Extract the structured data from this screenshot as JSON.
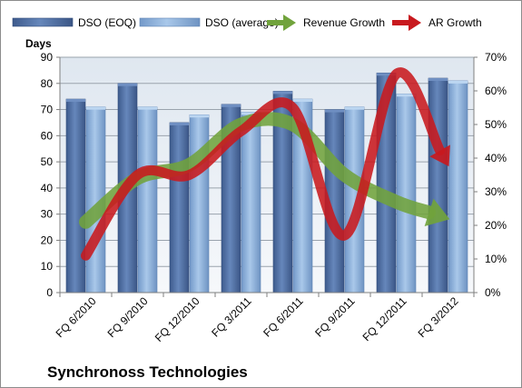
{
  "chart_data": {
    "type": "bar",
    "title": "Synchronoss Technologies",
    "ylabel": "Days",
    "ylim": [
      0,
      90
    ],
    "y2lim": [
      0,
      0.7
    ],
    "yticks": [
      "0",
      "10",
      "20",
      "30",
      "40",
      "50",
      "60",
      "70",
      "80",
      "90"
    ],
    "y2ticks": [
      "0%",
      "10%",
      "20%",
      "30%",
      "40%",
      "50%",
      "60%",
      "70%"
    ],
    "categories": [
      "FQ 6/2010",
      "FQ 9/2010",
      "FQ 12/2010",
      "FQ 3/2011",
      "FQ 6/2011",
      "FQ 9/2011",
      "FQ 12/2011",
      "FQ 3/2012"
    ],
    "grid": true,
    "legend_position": "top",
    "series": [
      {
        "name": "DSO (EOQ)",
        "kind": "bar",
        "axis": "left",
        "color": "#4f6fa3",
        "values": [
          74,
          80,
          65,
          72,
          77,
          70,
          84,
          82
        ]
      },
      {
        "name": "DSO (average)",
        "kind": "bar",
        "axis": "left",
        "color": "#8ab0dc",
        "values": [
          71,
          71,
          68,
          69,
          74,
          71,
          76,
          81
        ]
      },
      {
        "name": "Revenue Growth",
        "kind": "arrow-line",
        "axis": "right",
        "color": "#71a33c",
        "values": [
          0.21,
          0.34,
          0.38,
          0.5,
          0.5,
          0.35,
          0.27,
          0.22
        ]
      },
      {
        "name": "AR Growth",
        "kind": "arrow-line",
        "axis": "right",
        "color": "#c8191e",
        "values": [
          0.11,
          0.35,
          0.35,
          0.48,
          0.55,
          0.17,
          0.65,
          0.38
        ]
      }
    ]
  }
}
